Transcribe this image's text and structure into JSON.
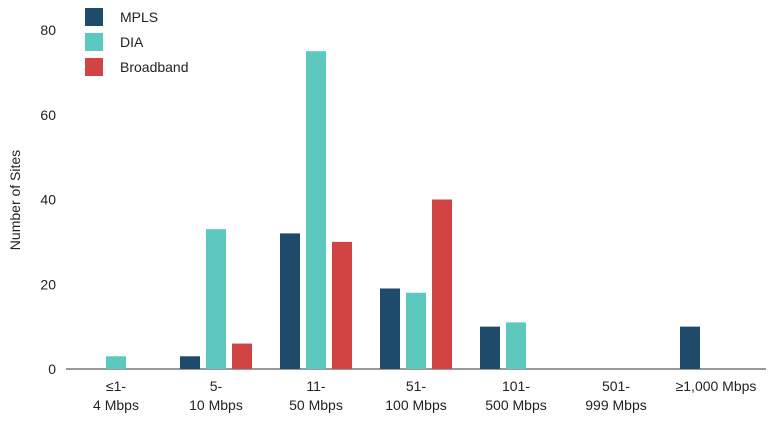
{
  "chart_data": {
    "type": "bar",
    "categories": [
      "≤1-\n4 Mbps",
      "5-\n10 Mbps",
      "11-\n50 Mbps",
      "51-\n100 Mbps",
      "101-\n500 Mbps",
      "501-\n999 Mbps",
      "≥1,000 Mbps"
    ],
    "series": [
      {
        "name": "MPLS",
        "color": "#1f4b6b",
        "values": [
          0,
          3,
          32,
          19,
          10,
          0,
          10
        ]
      },
      {
        "name": "DIA",
        "color": "#5cc8be",
        "values": [
          3,
          33,
          75,
          18,
          11,
          0,
          0
        ]
      },
      {
        "name": "Broadband",
        "color": "#d14444",
        "values": [
          0,
          6,
          30,
          40,
          0,
          0,
          0
        ]
      }
    ],
    "y_label": "Number of Sites",
    "ylim": [
      0,
      80
    ],
    "yticks": [
      0,
      20,
      40,
      60,
      80
    ],
    "grid": false,
    "legend": "top-left"
  }
}
